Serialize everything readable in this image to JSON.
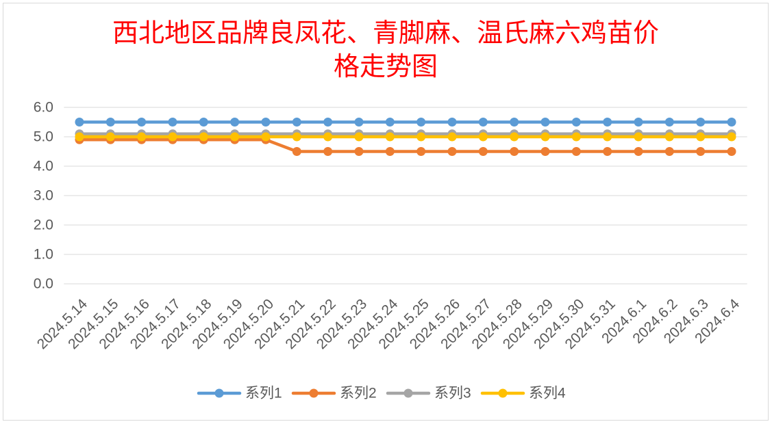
{
  "chart_data": {
    "type": "line",
    "title": [
      "西北地区品牌良凤花、青脚麻、温氏麻六鸡苗价",
      "格走势图"
    ],
    "title_color": "#FF0000",
    "categories": [
      "2024.5.14",
      "2024.5.15",
      "2024.5.16",
      "2024.5.17",
      "2024.5.18",
      "2024.5.19",
      "2024.5.20",
      "2024.5.21",
      "2024.5.22",
      "2024.5.23",
      "2024.5.24",
      "2024.5.25",
      "2024.5.26",
      "2024.5.27",
      "2024.5.28",
      "2024.5.29",
      "2024.5.30",
      "2024.5.31",
      "2024.6.1",
      "2024.6.2",
      "2024.6.3",
      "2024.6.4"
    ],
    "series": [
      {
        "name": "系列1",
        "color": "#5B9BD5",
        "values": [
          5.5,
          5.5,
          5.5,
          5.5,
          5.5,
          5.5,
          5.5,
          5.5,
          5.5,
          5.5,
          5.5,
          5.5,
          5.5,
          5.5,
          5.5,
          5.5,
          5.5,
          5.5,
          5.5,
          5.5,
          5.5,
          5.5
        ]
      },
      {
        "name": "系列2",
        "color": "#ED7D31",
        "values": [
          4.9,
          4.9,
          4.9,
          4.9,
          4.9,
          4.9,
          4.9,
          4.5,
          4.5,
          4.5,
          4.5,
          4.5,
          4.5,
          4.5,
          4.5,
          4.5,
          4.5,
          4.5,
          4.5,
          4.5,
          4.5,
          4.5
        ]
      },
      {
        "name": "系列3",
        "color": "#A5A5A5",
        "values": [
          5.1,
          5.1,
          5.1,
          5.1,
          5.1,
          5.1,
          5.1,
          5.1,
          5.1,
          5.1,
          5.1,
          5.1,
          5.1,
          5.1,
          5.1,
          5.1,
          5.1,
          5.1,
          5.1,
          5.1,
          5.1,
          5.1
        ]
      },
      {
        "name": "系列4",
        "color": "#FFC000",
        "values": [
          5.0,
          5.0,
          5.0,
          5.0,
          5.0,
          5.0,
          5.0,
          5.0,
          5.0,
          5.0,
          5.0,
          5.0,
          5.0,
          5.0,
          5.0,
          5.0,
          5.0,
          5.0,
          5.0,
          5.0,
          5.0,
          5.0
        ]
      }
    ],
    "ylim": [
      0,
      6
    ],
    "yticks": [
      "0.0",
      "1.0",
      "2.0",
      "3.0",
      "4.0",
      "5.0",
      "6.0"
    ],
    "grid": true,
    "legend": "bottom"
  }
}
